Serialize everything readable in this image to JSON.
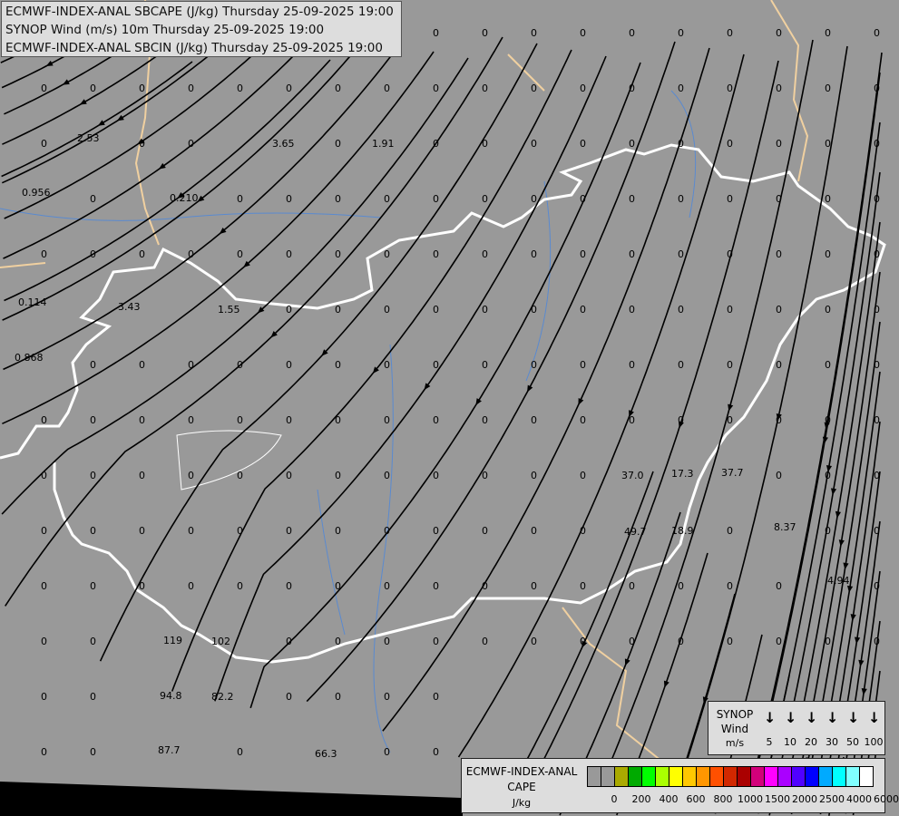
{
  "titles": [
    "ECMWF-INDEX-ANAL SBCAPE (J/kg) Thursday 25-09-2025 19:00",
    "SYNOP Wind (m/s) 10m Thursday 25-09-2025 19:00",
    "ECMWF-INDEX-ANAL SBCIN (J/kg) Thursday 25-09-2025 19:00"
  ],
  "map": {
    "background_color": "#999999",
    "streamline_color": "#000000",
    "border_color": "#ffffff",
    "other_border_color": "#f0d0a0",
    "river_color": "#5a8ad0"
  },
  "cape_labels": [
    "2.53",
    "3.65",
    "1.91",
    "0.956",
    "0.210",
    "0.114",
    "3.43",
    "1.55",
    "0.868",
    "119",
    "102",
    "94.8",
    "82.2",
    "87.7",
    "66.3",
    "37.0",
    "17.3",
    "37.7",
    "49.7",
    "18.9",
    "8.37",
    "4.94",
    "0"
  ],
  "synop_legend": {
    "title_lines": [
      "SYNOP",
      "Wind",
      "m/s"
    ],
    "icon": "wind-arrow-down-icon",
    "values": [
      "5",
      "10",
      "20",
      "30",
      "50",
      "100"
    ]
  },
  "cape_legend": {
    "title_lines": [
      "ECMWF-INDEX-ANAL",
      "CAPE",
      "J/kg"
    ],
    "colors": [
      "#999999",
      "#999999",
      "#aaaa00",
      "#00aa00",
      "#00ff00",
      "#aaff00",
      "#ffff00",
      "#ffc800",
      "#ff9600",
      "#ff5000",
      "#d22800",
      "#aa0000",
      "#d2007a",
      "#ff00ff",
      "#aa00ff",
      "#5000ff",
      "#0000ff",
      "#00aaff",
      "#00ffff",
      "#80ffff",
      "#ffffff"
    ],
    "ticks": [
      "0",
      "200",
      "400",
      "600",
      "800",
      "1000",
      "1500",
      "2000",
      "2500",
      "4000",
      "6000"
    ]
  }
}
